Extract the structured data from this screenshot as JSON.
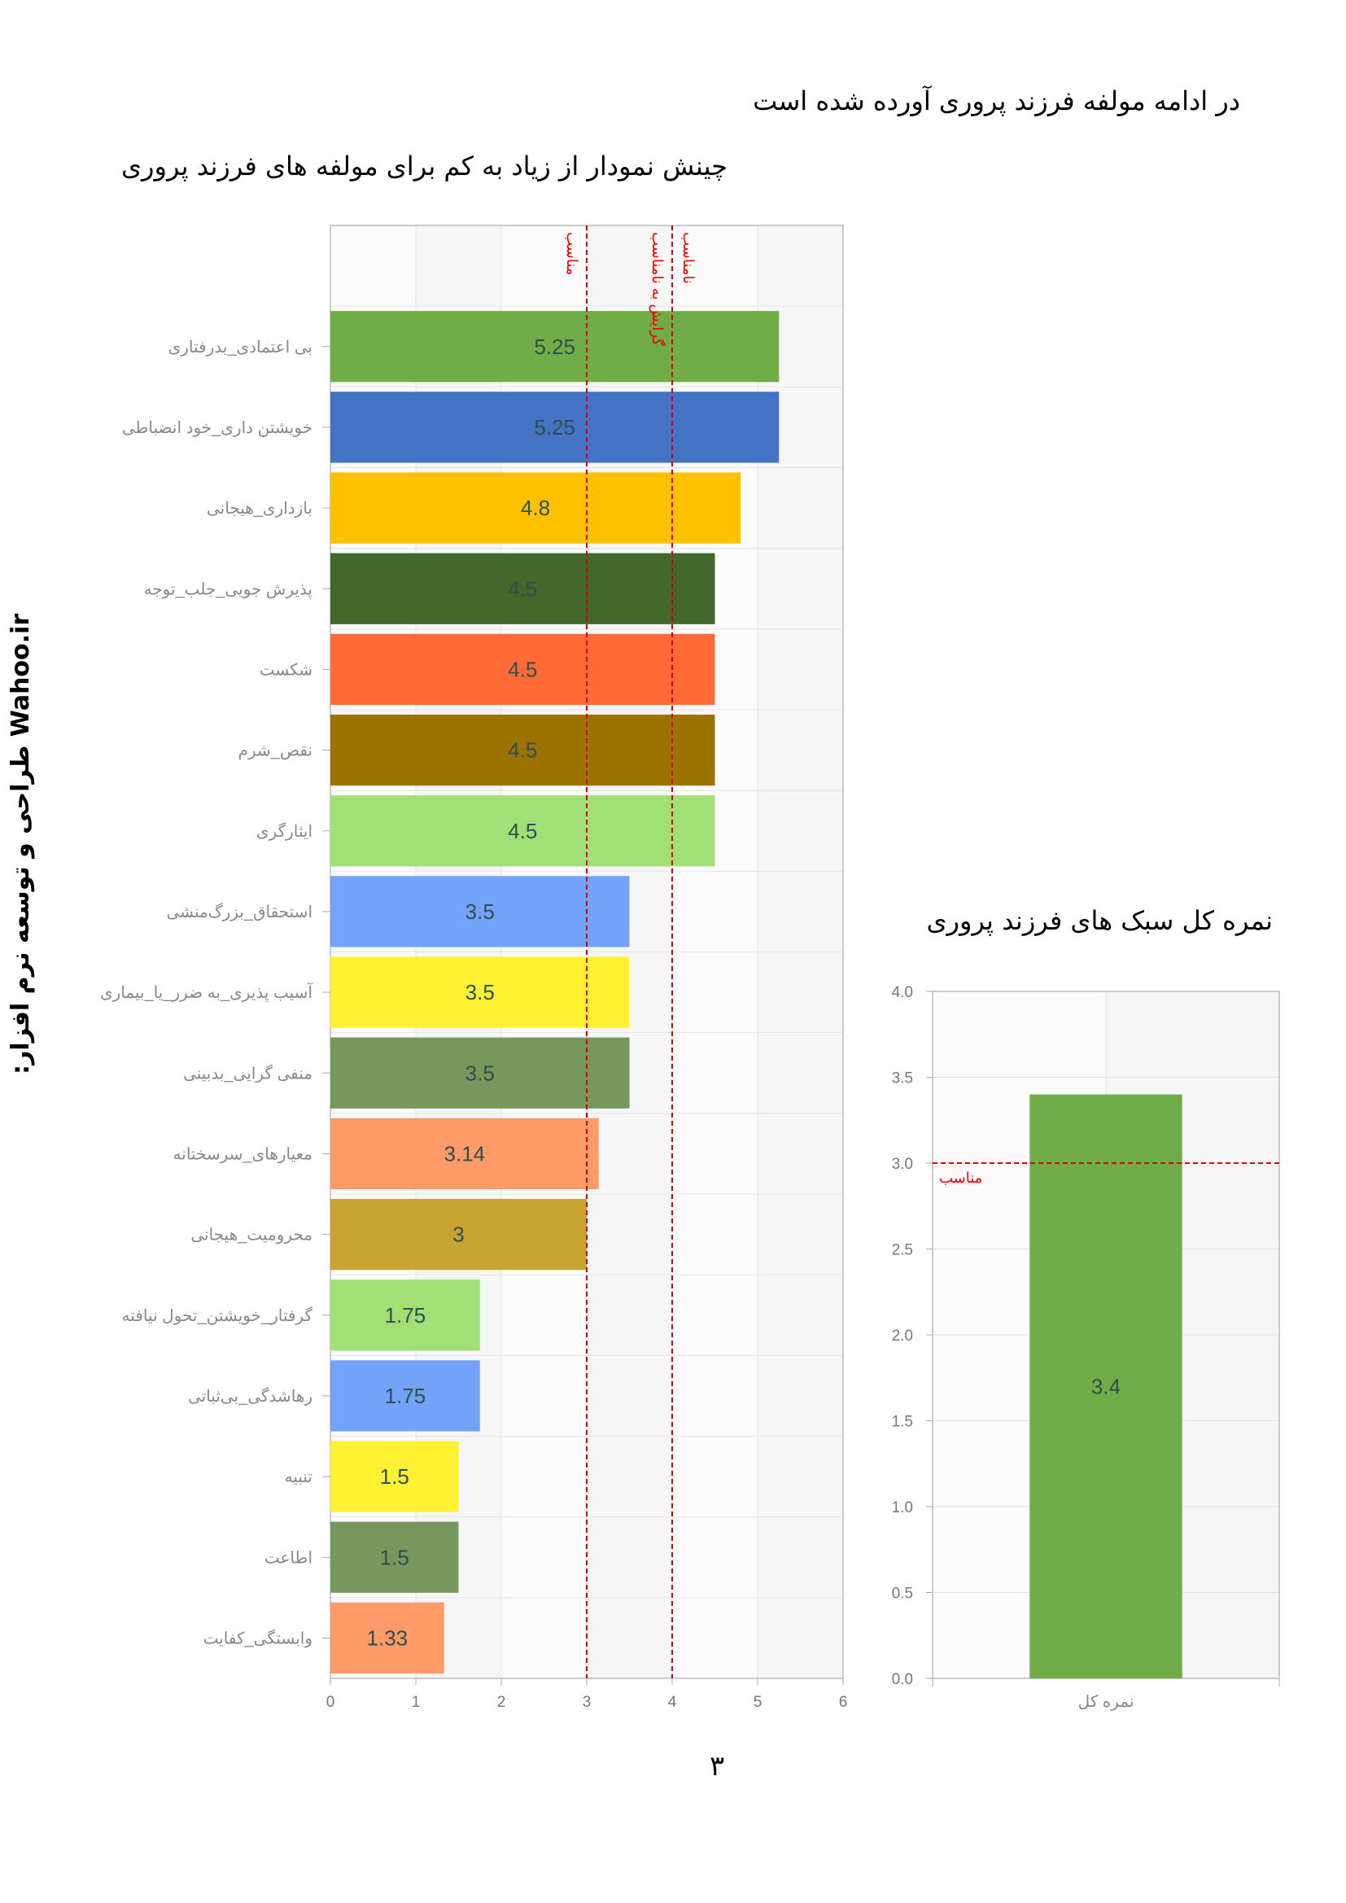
{
  "intro_text": "در ادامه مولفه فرزند پروری آورده شده است",
  "heading": "چینش نمودار از زیاد به کم برای مولفه های فرزند پروری",
  "sidebar_text": "Wahoo.ir   طراحی و توسعه نرم افزار:",
  "page_number": "۳",
  "chart_data": [
    {
      "type": "bar",
      "orientation": "horizontal",
      "title": "چینش نمودار از زیاد به کم برای مولفه های فرزند پروری",
      "categories": [
        "بی اعتمادی_بدرفتاری",
        "خویشتن داری_خود انضباطی",
        "بازداری_هیجانی",
        "پذیرش جویی_جلب_توجه",
        "شکست",
        "نقص_شرم",
        "ایثارگری",
        "استحقاق_بزرگ‌منشی",
        "آسیب پذیری_به ضرر_یا_بیماری",
        "منفی گرایی_بدبینی",
        "معیارهای_سرسختانه",
        "محرومیت_هیجانی",
        "گرفتار_خویشتن_تحول نیافته",
        "رهاشدگی_بی‌ثباتی",
        "تنبیه",
        "اطاعت",
        "وابستگی_کفایت"
      ],
      "values": [
        5.25,
        5.25,
        4.8,
        4.5,
        4.5,
        4.5,
        4.5,
        3.5,
        3.5,
        3.5,
        3.14,
        3,
        1.75,
        1.75,
        1.5,
        1.5,
        1.33
      ],
      "value_labels": [
        "5.25",
        "5.25",
        "4.8",
        "4.5",
        "4.5",
        "4.5",
        "4.5",
        "3.5",
        "3.5",
        "3.5",
        "3.14",
        "3",
        "1.75",
        "1.75",
        "1.5",
        "1.5",
        "1.33"
      ],
      "colors": [
        "#70ad47",
        "#4472c4",
        "#ffc000",
        "#43682b",
        "#ff6b37",
        "#9c7200",
        "#a2df77",
        "#73a3f6",
        "#fff133",
        "#77985c",
        "#ff9b68",
        "#c9a332",
        "#a2df77",
        "#73a3f6",
        "#fff133",
        "#77985c",
        "#ff9b68"
      ],
      "xlim": [
        0,
        6
      ],
      "x_ticks": [
        "0",
        "1",
        "2",
        "3",
        "4",
        "5",
        "6"
      ],
      "reference_lines": [
        {
          "value": 3,
          "labels": [
            "مناسب"
          ]
        },
        {
          "value": 4,
          "labels": [
            "گرایش به نامناسب",
            "نامناسب"
          ]
        }
      ],
      "grid": true
    },
    {
      "type": "bar",
      "title": "نمره کل سبک های فرزند پروری",
      "categories": [
        "نمره کل"
      ],
      "values": [
        3.4
      ],
      "value_labels": [
        "3.4"
      ],
      "colors": [
        "#70ad47"
      ],
      "ylim": [
        0,
        4
      ],
      "y_ticks": [
        "0.0",
        "0.5",
        "1.0",
        "1.5",
        "2.0",
        "2.5",
        "3.0",
        "3.5",
        "4.0"
      ],
      "reference_lines": [
        {
          "value": 3,
          "labels": [
            "مناسب"
          ]
        }
      ],
      "grid": true
    }
  ]
}
